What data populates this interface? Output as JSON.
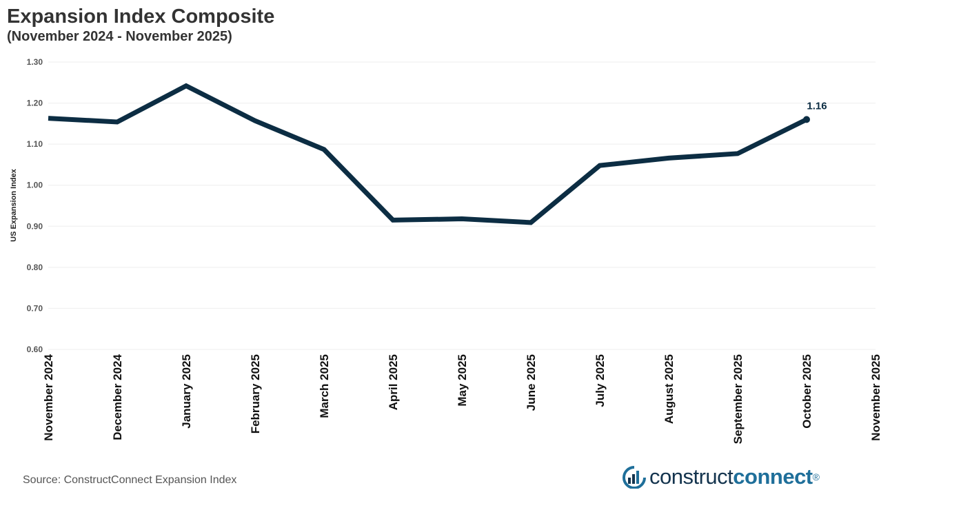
{
  "header": {
    "title": "Expansion Index Composite",
    "subtitle": "(November 2024 - November 2025)"
  },
  "chart_data": {
    "type": "line",
    "title": "Expansion Index Composite",
    "subtitle": "(November 2024 - November 2025)",
    "ylabel": "US Expansion Index",
    "xlabel": "",
    "categories": [
      "November 2024",
      "December 2024",
      "January 2025",
      "February 2025",
      "March 2025",
      "April 2025",
      "May 2025",
      "June 2025",
      "July 2025",
      "August 2025",
      "September 2025",
      "October 2025",
      "November 2025"
    ],
    "series": [
      {
        "values": [
          1.163,
          1.154,
          1.242,
          1.157,
          1.087,
          0.915,
          0.918,
          0.909,
          1.048,
          1.066,
          1.077,
          1.16,
          null
        ],
        "color": "#0c2d43"
      }
    ],
    "ylim": [
      0.6,
      1.3
    ],
    "yticks": [
      "0.60",
      "0.70",
      "0.80",
      "0.90",
      "1.00",
      "1.10",
      "1.20",
      "1.30"
    ],
    "data_labels": [
      {
        "category": "October 2025",
        "text": "1.16"
      }
    ],
    "grid": true,
    "legend": "none"
  },
  "footer": {
    "source": "Source: ConstructConnect Expansion Index",
    "logo_part1": "construct",
    "logo_part2": "connect",
    "logo_mark": "®",
    "logo_icon": "constructconnect-logo-icon"
  },
  "colors": {
    "line": "#0c2d43",
    "title": "#333333",
    "logo_dark": "#14344e",
    "logo_accent": "#1f6f9a"
  }
}
